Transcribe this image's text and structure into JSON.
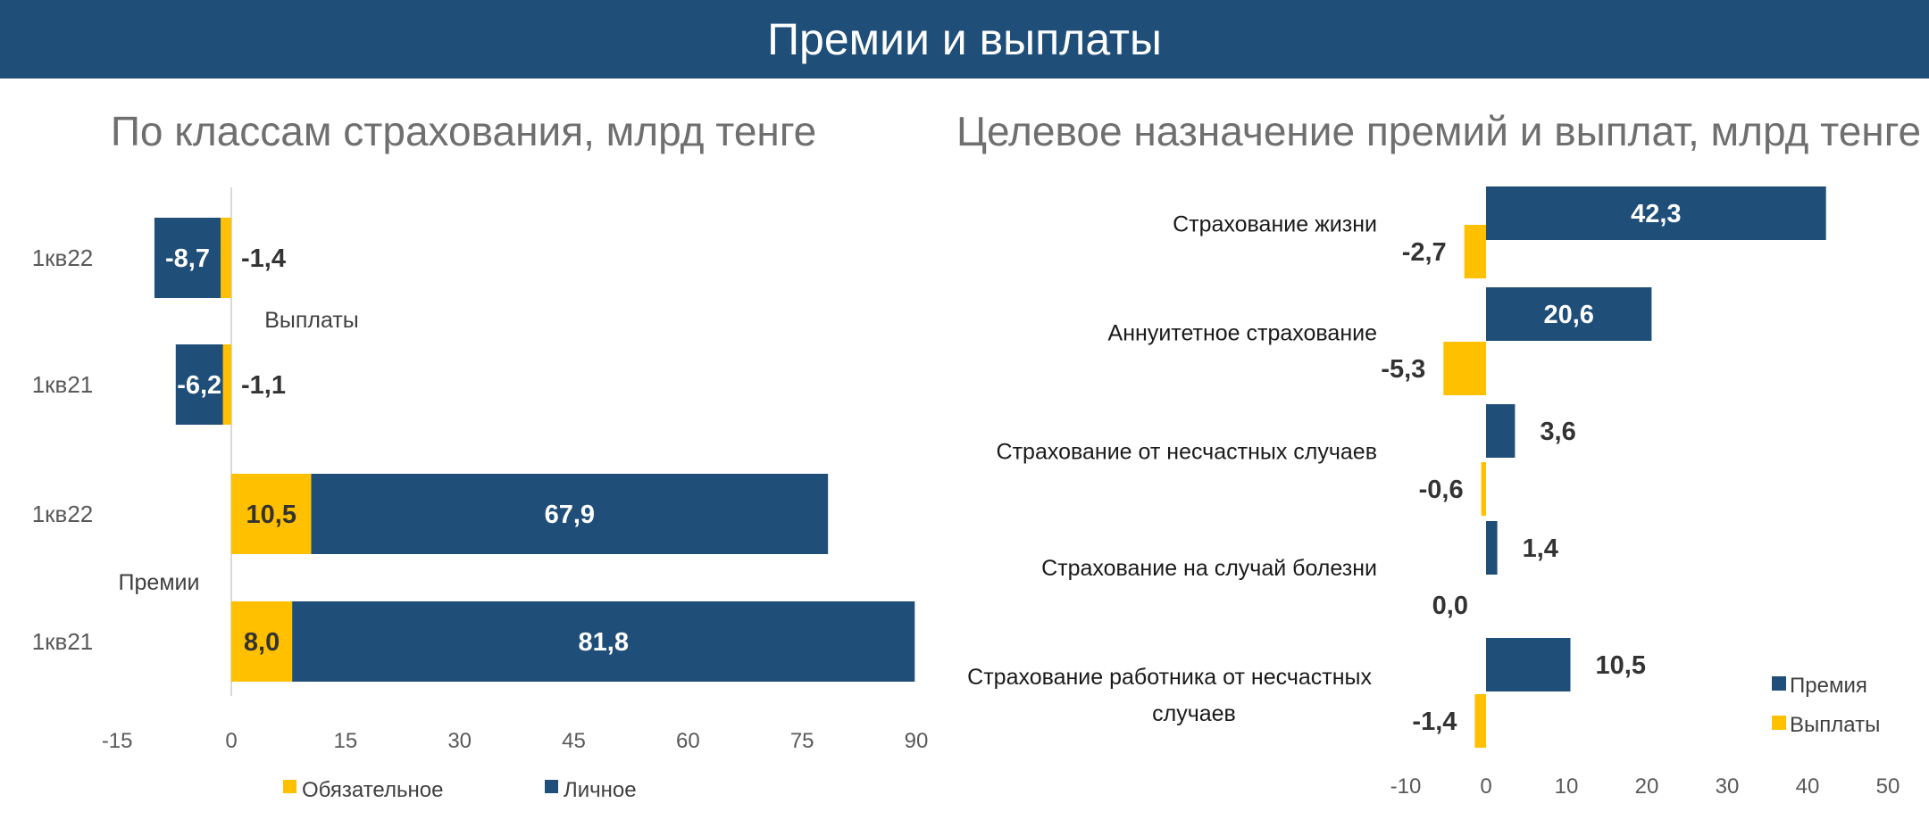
{
  "banner": {
    "title": "Премии и выплаты"
  },
  "chart_data": [
    {
      "type": "bar",
      "orientation": "horizontal",
      "stacked": true,
      "title": "По классам страхования, млрд тенге",
      "xlim": [
        -15,
        90
      ],
      "xticks": [
        -15,
        0,
        15,
        30,
        45,
        60,
        75,
        90
      ],
      "categories": [
        "1кв22",
        "1кв21",
        "1кв22",
        "1кв21"
      ],
      "groups": [
        "Выплаты",
        "Выплаты",
        "Премии",
        "Премии"
      ],
      "group_labels": [
        "Выплаты",
        "Премии"
      ],
      "series": [
        {
          "name": "Обязательное",
          "values": [
            -1.4,
            -1.1,
            10.5,
            8.0
          ],
          "labels": [
            "-1,4",
            "-1,1",
            "10,5",
            "8,0"
          ]
        },
        {
          "name": "Личное",
          "values": [
            -8.7,
            -6.2,
            67.9,
            81.8
          ],
          "labels": [
            "-8,7",
            "-6,2",
            "67,9",
            "81,8"
          ]
        }
      ],
      "legend": "bottom",
      "colors": {
        "Обязательное": "#ffc000",
        "Личное": "#1f4e79"
      }
    },
    {
      "type": "bar",
      "orientation": "horizontal",
      "title": "Целевое назначение премий и выплат, млрд тенге",
      "xlim": [
        -10,
        50
      ],
      "xticks": [
        -10,
        0,
        10,
        20,
        30,
        40,
        50
      ],
      "categories": [
        [
          "Страхование жизни"
        ],
        [
          "Аннуитетное страхование"
        ],
        [
          "Страхование от несчастных случаев"
        ],
        [
          "Страхование на случай болезни"
        ],
        [
          "Страхование работника от несчастных",
          "случаев"
        ]
      ],
      "series": [
        {
          "name": "Премия",
          "values": [
            42.3,
            20.6,
            3.6,
            1.4,
            10.5
          ],
          "labels": [
            "42,3",
            "20,6",
            "3,6",
            "1,4",
            "10,5"
          ]
        },
        {
          "name": "Выплаты",
          "values": [
            -2.7,
            -5.3,
            -0.6,
            0.0,
            -1.4
          ],
          "labels": [
            "-2,7",
            "-5,3",
            "-0,6",
            "0,0",
            "-1,4"
          ]
        }
      ],
      "legend": "bottom-right",
      "colors": {
        "Премия": "#1f4e79",
        "Выплаты": "#ffc000"
      }
    }
  ]
}
